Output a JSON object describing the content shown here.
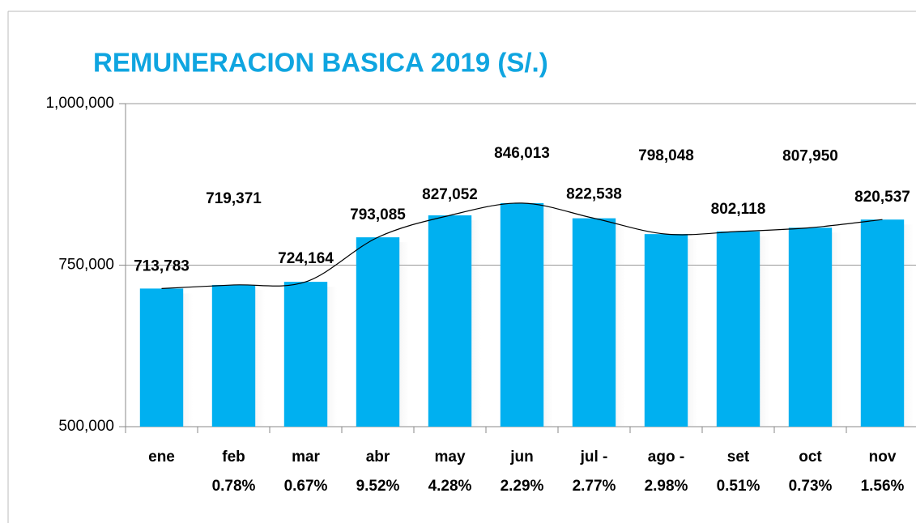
{
  "chart_data": {
    "type": "bar",
    "title": "REMUNERACION BASICA 2019 (S/.)",
    "categories": [
      "ene",
      "feb",
      "mar",
      "abr",
      "may",
      "jun",
      "jul -",
      "ago -",
      "set",
      "oct",
      "nov"
    ],
    "change_labels": [
      null,
      "0.78%",
      "0.67%",
      "9.52%",
      "4.28%",
      "2.29%",
      "2.77%",
      "2.98%",
      "0.51%",
      "0.73%",
      "1.56%"
    ],
    "values": [
      713783,
      719371,
      724164,
      793085,
      827052,
      846013,
      822538,
      798048,
      802118,
      807950,
      820537
    ],
    "value_labels": [
      "713,783",
      "719,371",
      "724,164",
      "793,085",
      "827,052",
      "846,013",
      "822,538",
      "798,048",
      "802,118",
      "807,950",
      "820,537"
    ],
    "color": "#00b0f0",
    "ylim": [
      500000,
      1000000
    ],
    "yticks": [
      {
        "value": 500000,
        "label": "500,000"
      },
      {
        "value": 750000,
        "label": "750,000"
      },
      {
        "value": 1000000,
        "label": "1,000,000"
      }
    ],
    "grid": true
  }
}
